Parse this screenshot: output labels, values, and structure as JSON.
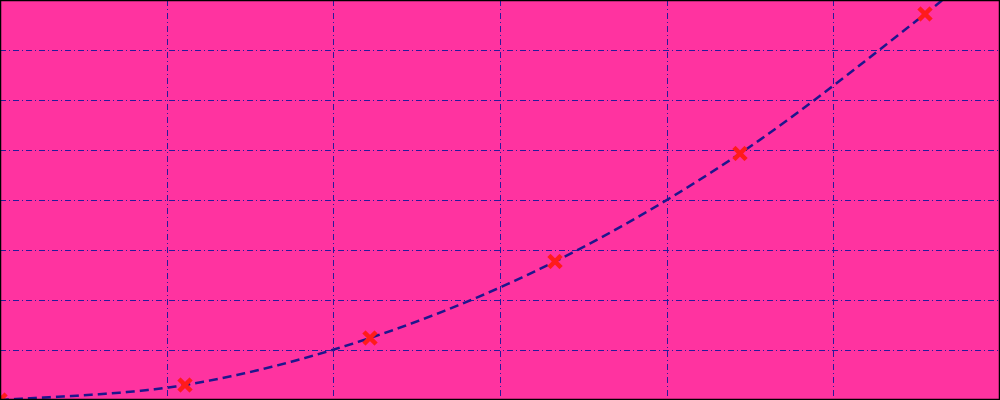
{
  "chart_data": {
    "type": "line",
    "title": "",
    "xlabel": "",
    "ylabel": "",
    "xlim": [
      0,
      6
    ],
    "ylim": [
      0,
      8
    ],
    "grid": true,
    "x_gridlines": [
      0,
      1,
      2,
      3,
      4,
      5,
      6
    ],
    "y_gridlines": [
      0,
      1,
      2,
      3,
      4,
      5,
      6,
      7,
      8
    ],
    "series": [
      {
        "x": [
          0,
          1.11,
          2.22,
          3.33,
          4.44,
          5.55,
          6.0
        ],
        "y": [
          0,
          0.3,
          1.24,
          2.77,
          4.93,
          7.72,
          9.0
        ]
      }
    ]
  },
  "colors": {
    "background": "#ff33a0",
    "grid": "#2a1a9a",
    "line": "#1e168c",
    "marker": "#ff1b1b"
  }
}
